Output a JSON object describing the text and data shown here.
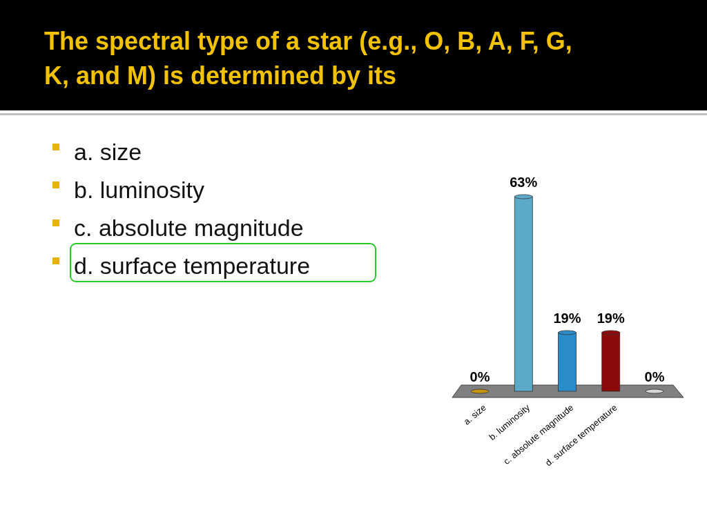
{
  "chart_data": {
    "type": "bar",
    "title": "The spectral type of a star (e.g., O, B, A, F, G, K, and M) is determined by its",
    "annotations": [
      "a. size",
      "b. luminosity",
      "c. absolute magnitude",
      "d. surface temperature"
    ],
    "categories": [
      "a. size",
      "b. luminosity",
      "c. absolute magnitude",
      "d. surface temperature",
      null
    ],
    "values": [
      0,
      63,
      19,
      19,
      0
    ],
    "value_labels": [
      "0%",
      "63%",
      "19%",
      "19%",
      "0%"
    ],
    "colors": [
      "#c8950f",
      "#5aaac8",
      "#2a8cc8",
      "#8b0a0a",
      "#d8d8d8"
    ]
  }
}
